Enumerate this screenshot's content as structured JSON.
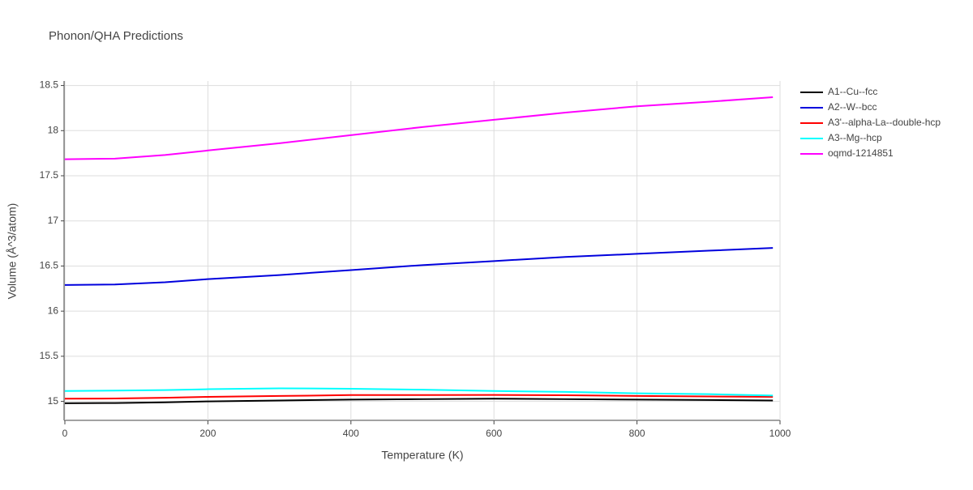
{
  "chart_data": {
    "type": "line",
    "title": "Phonon/QHA Predictions",
    "x_label": "Temperature (K)",
    "y_label": "Volume (Å^3/atom)",
    "x": [
      0,
      70,
      140,
      200,
      300,
      400,
      500,
      600,
      700,
      800,
      900,
      990
    ],
    "series": [
      {
        "name": "A1--Cu--fcc",
        "color": "#000000",
        "values": [
          14.98,
          14.982,
          14.99,
          15.0,
          15.01,
          15.02,
          15.025,
          15.03,
          15.025,
          15.02,
          15.015,
          15.01
        ]
      },
      {
        "name": "A2--W--bcc",
        "color": "#0000dd",
        "values": [
          16.29,
          16.295,
          16.32,
          16.355,
          16.4,
          16.455,
          16.51,
          16.555,
          16.6,
          16.635,
          16.67,
          16.7
        ]
      },
      {
        "name": "A3'--alpha-La--double-hcp",
        "color": "#ff0000",
        "values": [
          15.03,
          15.032,
          15.04,
          15.05,
          15.06,
          15.07,
          15.07,
          15.072,
          15.068,
          15.06,
          15.055,
          15.05
        ]
      },
      {
        "name": "A3--Mg--hcp",
        "color": "#00ffff",
        "values": [
          15.115,
          15.12,
          15.125,
          15.135,
          15.145,
          15.14,
          15.13,
          15.115,
          15.105,
          15.09,
          15.08,
          15.065
        ]
      },
      {
        "name": "oqmd-1214851",
        "color": "#ff00ff",
        "values": [
          17.683,
          17.69,
          17.73,
          17.78,
          17.86,
          17.95,
          18.04,
          18.12,
          18.2,
          18.27,
          18.32,
          18.37
        ]
      }
    ],
    "xlim": [
      0,
      1000
    ],
    "xticks": [
      0,
      200,
      400,
      600,
      800,
      1000
    ],
    "ylim": [
      14.79,
      18.55
    ],
    "yticks": [
      15,
      15.5,
      16,
      16.5,
      17,
      17.5,
      18,
      18.5
    ],
    "grid": true,
    "legend_position": "right"
  }
}
